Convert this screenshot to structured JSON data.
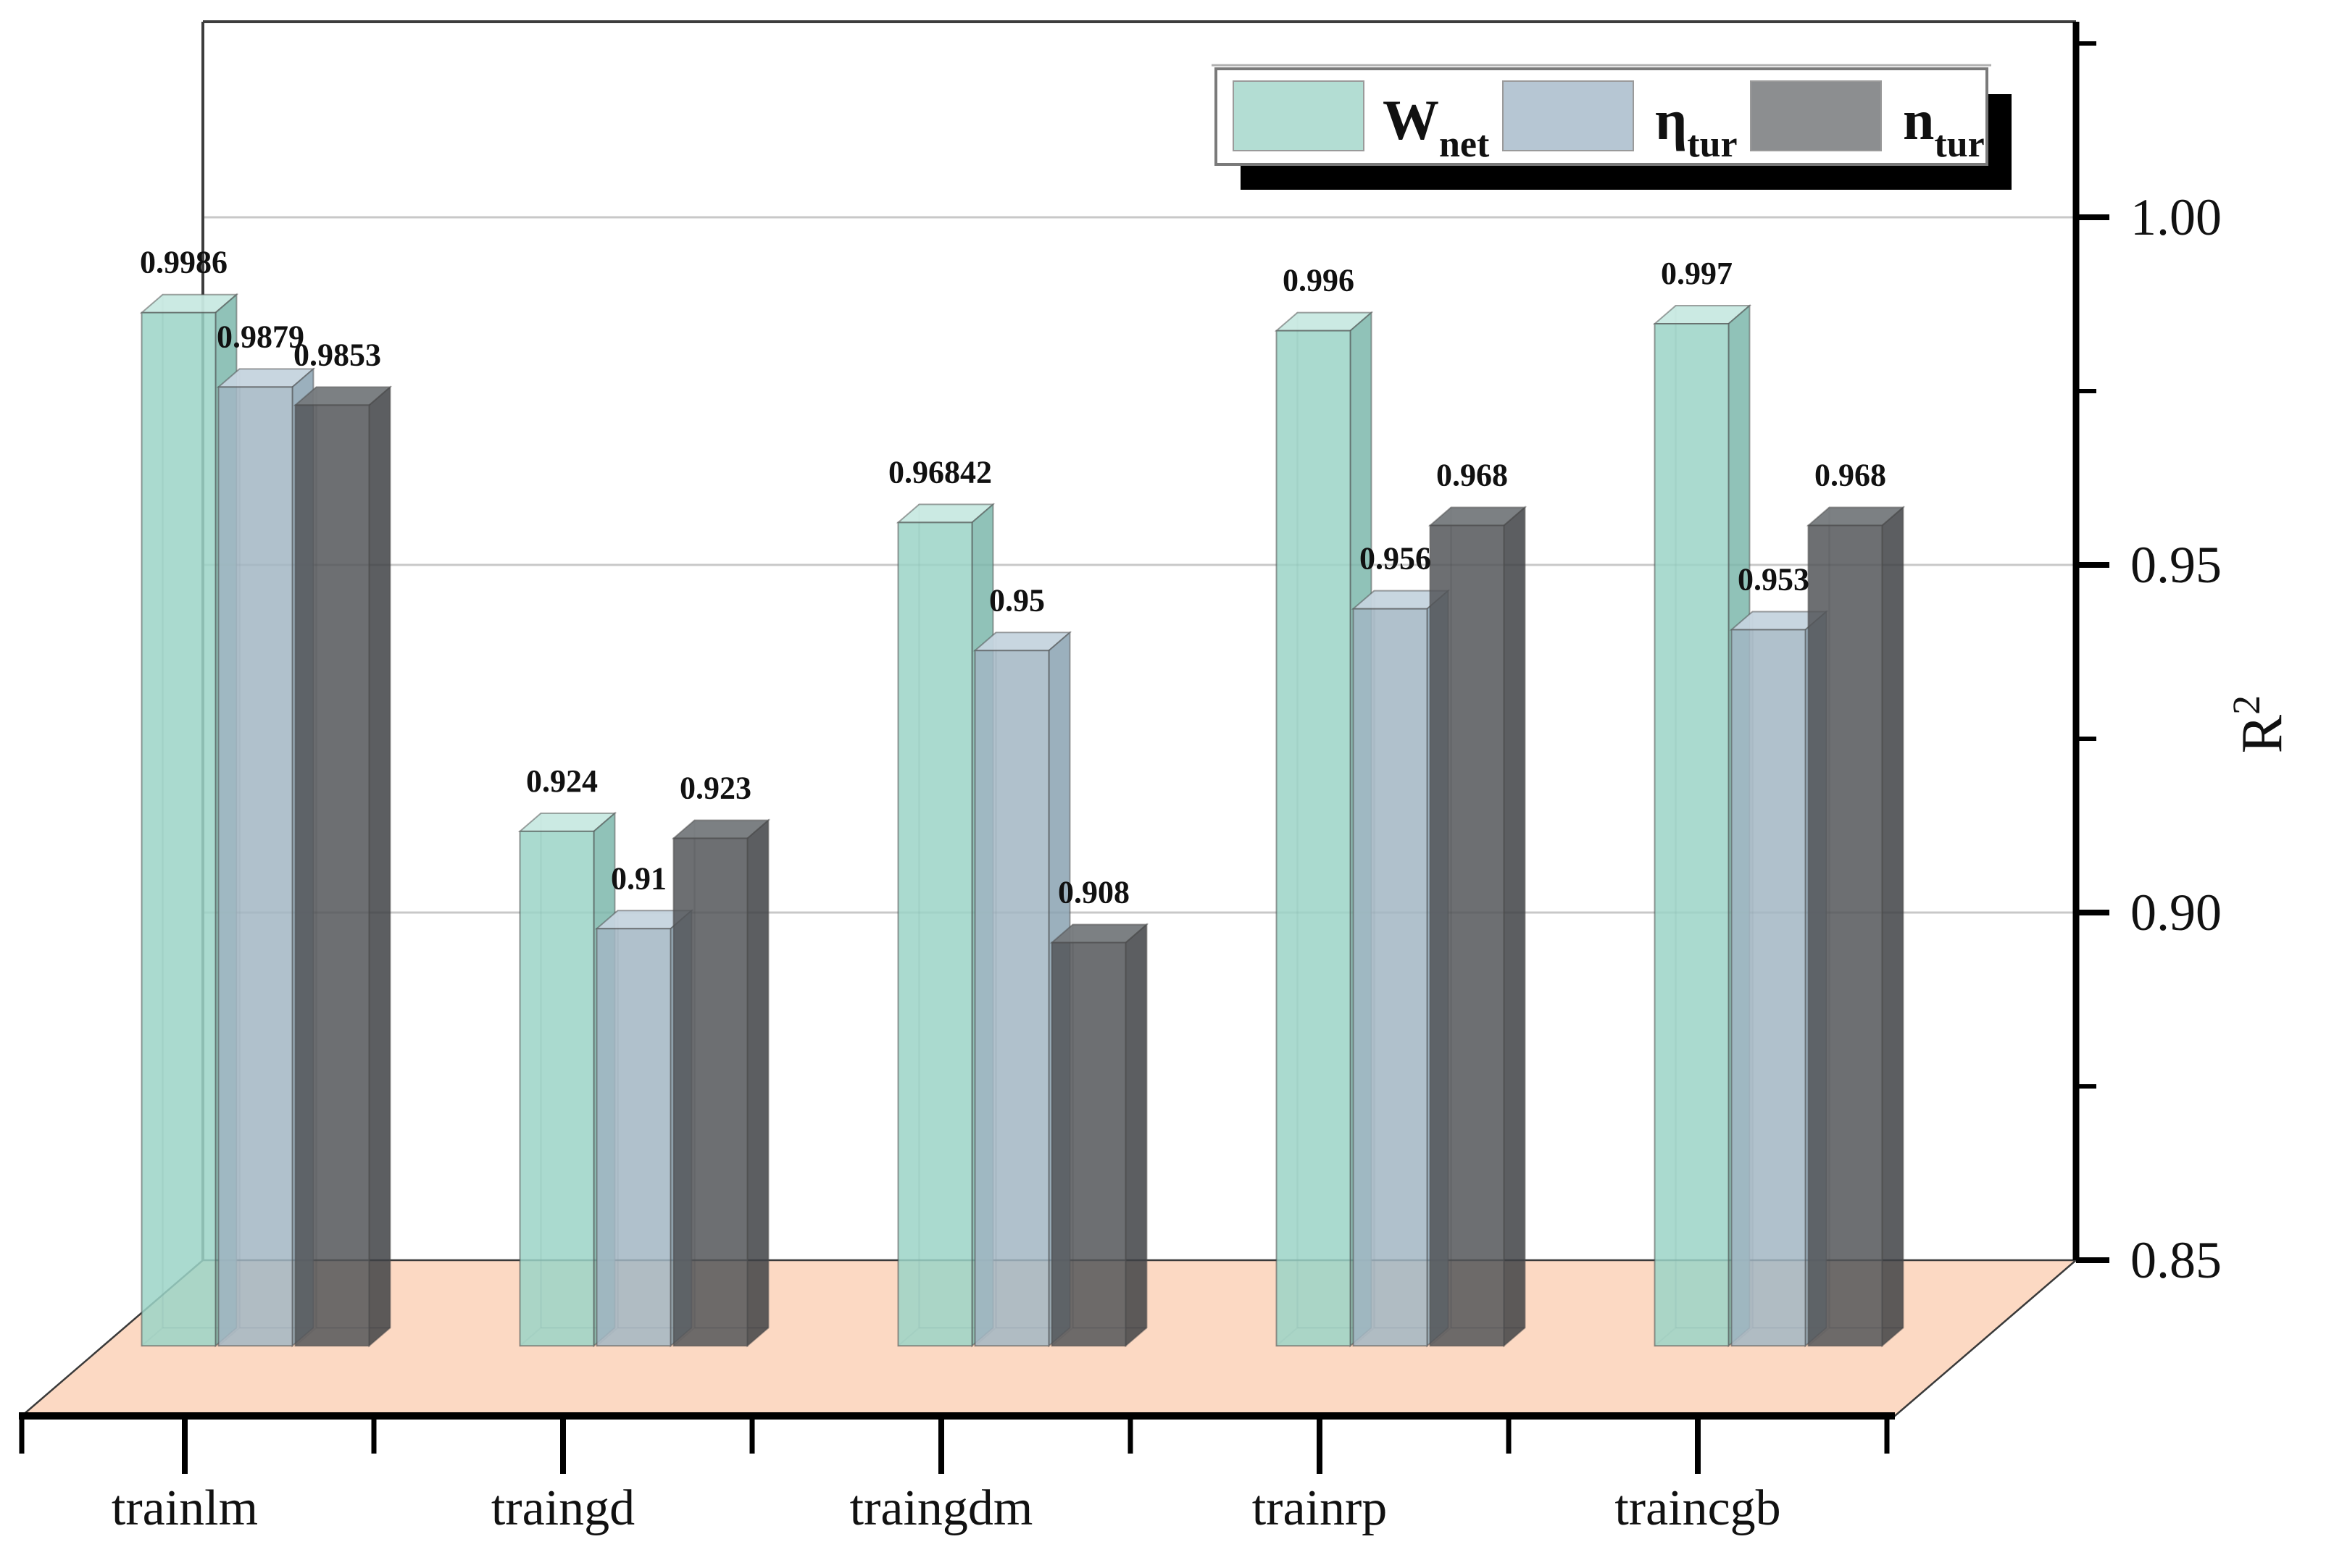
{
  "chart_data": {
    "type": "bar",
    "projection": "pseudo-3d-bar3d",
    "title": "",
    "categories": [
      "trainlm",
      "traingd",
      "traingdm",
      "trainrp",
      "traincgb"
    ],
    "series": [
      {
        "name": "W_net",
        "legend_main": "W",
        "legend_sub": "net",
        "values": [
          0.9986,
          0.924,
          0.96842,
          0.996,
          0.997
        ],
        "value_labels": [
          "0.9986",
          "0.924",
          "0.96842",
          "0.996",
          "0.997"
        ],
        "color_front": "#9bd3c7",
        "color_top": "#c8e9e1",
        "color_side": "#7db7ab",
        "color_legend": "#b3ddd3"
      },
      {
        "name": "eta_tur",
        "legend_main": "η",
        "legend_sub": "tur",
        "values": [
          0.9879,
          0.91,
          0.95,
          0.956,
          0.953
        ],
        "value_labels": [
          "0.9879",
          "0.91",
          "0.95",
          "0.956",
          "0.953"
        ],
        "color_front": "#a2b6c3",
        "color_top": "#c5d4de",
        "color_side": "#8aa2b2",
        "color_legend": "#b6c6d3"
      },
      {
        "name": "n_tur",
        "legend_main": "n",
        "legend_sub": "tur",
        "values": [
          0.9853,
          0.923,
          0.908,
          0.968,
          0.968
        ],
        "value_labels": [
          "0.9853",
          "0.923",
          "0.908",
          "0.968",
          "0.968"
        ],
        "color_front": "#535659",
        "color_top": "#75797c",
        "color_side": "#3f4245",
        "color_legend": "#8c8e90"
      }
    ],
    "value_axis": {
      "title_main": "R",
      "title_sup": "2",
      "side": "right",
      "range": [
        0.85,
        1.028
      ],
      "major_ticks": [
        1.0,
        0.95,
        0.9,
        0.85
      ],
      "major_tick_labels": [
        "1.00",
        "0.95",
        "0.90",
        "0.85"
      ],
      "minor_ticks": [
        1.025,
        0.975,
        0.925,
        0.875
      ],
      "gridlines": [
        1.0,
        0.95,
        0.9
      ],
      "grid_on": true
    },
    "colors": {
      "floor": "#fcd9c3",
      "gridline": "#c8c8c8",
      "frame": "#3d3d3d",
      "axis": "#000000",
      "legend_shadow": "#000000",
      "legend_border": "#7a7a7a",
      "legend_bg": "#ffffff"
    },
    "legend_position": "top-right"
  }
}
